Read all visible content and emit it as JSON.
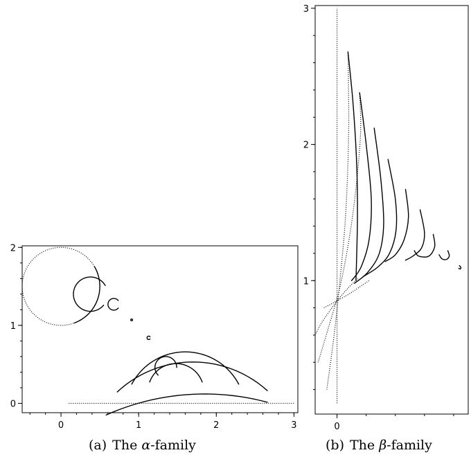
{
  "captions": {
    "a": {
      "label": "(a)",
      "prefix": "The ",
      "greek": "α",
      "suffix": "-family"
    },
    "b": {
      "label": "(b)",
      "prefix": "The ",
      "greek": "β",
      "suffix": "-family"
    }
  },
  "chart_data": [
    {
      "type": "line",
      "panel": "a",
      "xlim": [
        -0.5,
        3.05
      ],
      "ylim": [
        -0.12,
        2.02
      ],
      "xticks": [
        0,
        1,
        2,
        3
      ],
      "yticks": [
        0,
        1,
        2
      ],
      "xtick_labels": [
        "0",
        "1",
        "2",
        "3"
      ],
      "ytick_labels": [
        "0",
        "1",
        "2"
      ],
      "series": [
        {
          "style": "dotted",
          "kind": "circle",
          "center": [
            0.0,
            1.5
          ],
          "radius": 0.5,
          "from_deg": 0,
          "to_deg": 360
        },
        {
          "style": "solid",
          "kind": "arc",
          "center": [
            0.0,
            1.5
          ],
          "radius": 0.5,
          "from_deg": -70,
          "to_deg": 30
        },
        {
          "style": "solid",
          "kind": "arc",
          "center": [
            0.38,
            1.4
          ],
          "radius": 0.22,
          "from_deg": 30,
          "to_deg": 320
        },
        {
          "style": "solid",
          "kind": "arc",
          "center": [
            0.68,
            1.27
          ],
          "radius": 0.075,
          "from_deg": 40,
          "to_deg": 320
        },
        {
          "style": "solid",
          "kind": "arc",
          "center": [
            0.91,
            1.07
          ],
          "radius": 0.012,
          "from_deg": 0,
          "to_deg": 360
        },
        {
          "style": "solid",
          "kind": "arc",
          "center": [
            1.13,
            0.84
          ],
          "radius": 0.022,
          "from_deg": 40,
          "to_deg": 320
        },
        {
          "style": "solid",
          "kind": "arc",
          "center": [
            1.35,
            0.46
          ],
          "radius": 0.14,
          "from_deg": 0,
          "to_deg": 225
        },
        {
          "style": "solid",
          "kind": "arc",
          "center": [
            1.48,
            0.15
          ],
          "radius": 0.36,
          "from_deg": 20,
          "to_deg": 160
        },
        {
          "style": "solid",
          "kind": "arc",
          "center": [
            1.6,
            -0.12
          ],
          "radius": 0.78,
          "from_deg": 28,
          "to_deg": 152
        },
        {
          "style": "solid",
          "kind": "arc",
          "center": [
            1.7,
            -0.9
          ],
          "radius": 1.43,
          "from_deg": 48,
          "to_deg": 133
        },
        {
          "style": "solid",
          "kind": "arc",
          "center": [
            1.85,
            -3.0
          ],
          "radius": 3.12,
          "from_deg": 75,
          "to_deg": 114
        },
        {
          "style": "dotted",
          "kind": "line",
          "x": [
            0.1,
            3.0
          ],
          "y": [
            0.0,
            0.0
          ]
        }
      ]
    },
    {
      "type": "line",
      "panel": "b",
      "xlim": [
        -0.15,
        0.9
      ],
      "ylim": [
        0.02,
        3.02
      ],
      "xticks": [
        0
      ],
      "yticks": [
        1,
        2,
        3
      ],
      "xtick_labels": [
        "0"
      ],
      "ytick_labels": [
        "1",
        "2",
        "3"
      ],
      "series": [
        {
          "style": "dotted",
          "kind": "line",
          "x": [
            0.0,
            0.0
          ],
          "y": [
            0.1,
            3.0
          ]
        },
        {
          "style": "dotted",
          "kind": "curve",
          "x": [
            -0.07,
            -0.02,
            0.02,
            0.06,
            0.08,
            0.075
          ],
          "y": [
            0.2,
            0.6,
            1.0,
            1.5,
            2.1,
            2.68
          ]
        },
        {
          "style": "dotted",
          "kind": "curve",
          "x": [
            -0.13,
            -0.06,
            0.03,
            0.11,
            0.16,
            0.155
          ],
          "y": [
            0.4,
            0.65,
            1.0,
            1.5,
            2.05,
            2.38
          ]
        },
        {
          "style": "dotted",
          "kind": "curve",
          "x": [
            -0.15,
            -0.1,
            0.0,
            0.08,
            0.15
          ],
          "y": [
            0.6,
            0.7,
            0.85,
            0.95,
            1.02
          ]
        },
        {
          "style": "dotted",
          "kind": "curve",
          "x": [
            -0.09,
            -0.02,
            0.08,
            0.15,
            0.22
          ],
          "y": [
            0.8,
            0.84,
            0.9,
            0.95,
            1.0
          ]
        },
        {
          "style": "solid",
          "kind": "curve",
          "x": [
            0.075,
            0.11,
            0.135,
            0.14,
            0.13
          ],
          "y": [
            2.68,
            2.3,
            1.85,
            1.45,
            1.0
          ]
        },
        {
          "style": "solid",
          "kind": "curve",
          "x": [
            0.155,
            0.2,
            0.235,
            0.22,
            0.165,
            0.1
          ],
          "y": [
            2.38,
            2.0,
            1.6,
            1.3,
            1.1,
            1.0
          ]
        },
        {
          "style": "solid",
          "kind": "curve",
          "x": [
            0.255,
            0.3,
            0.32,
            0.29,
            0.21,
            0.12
          ],
          "y": [
            2.12,
            1.75,
            1.42,
            1.2,
            1.06,
            0.98
          ]
        },
        {
          "style": "solid",
          "kind": "curve",
          "x": [
            0.35,
            0.4,
            0.405,
            0.36,
            0.28,
            0.18
          ],
          "y": [
            1.89,
            1.6,
            1.37,
            1.2,
            1.1,
            1.03
          ]
        },
        {
          "style": "solid",
          "kind": "curve",
          "x": [
            0.47,
            0.49,
            0.46,
            0.4,
            0.33
          ],
          "y": [
            1.67,
            1.47,
            1.3,
            1.19,
            1.14
          ]
        },
        {
          "style": "solid",
          "kind": "curve",
          "x": [
            0.57,
            0.6,
            0.58,
            0.52,
            0.47
          ],
          "y": [
            1.52,
            1.35,
            1.24,
            1.18,
            1.15
          ]
        },
        {
          "style": "solid",
          "kind": "curve",
          "x": [
            0.66,
            0.67,
            0.63,
            0.56,
            0.53
          ],
          "y": [
            1.34,
            1.25,
            1.18,
            1.18,
            1.22
          ]
        },
        {
          "style": "solid",
          "kind": "curve",
          "x": [
            0.76,
            0.77,
            0.75,
            0.72,
            0.7
          ],
          "y": [
            1.22,
            1.18,
            1.155,
            1.16,
            1.19
          ]
        },
        {
          "style": "solid",
          "kind": "curve",
          "x": [
            0.84,
            0.85,
            0.845,
            0.835
          ],
          "y": [
            1.11,
            1.095,
            1.085,
            1.09
          ]
        }
      ]
    }
  ]
}
